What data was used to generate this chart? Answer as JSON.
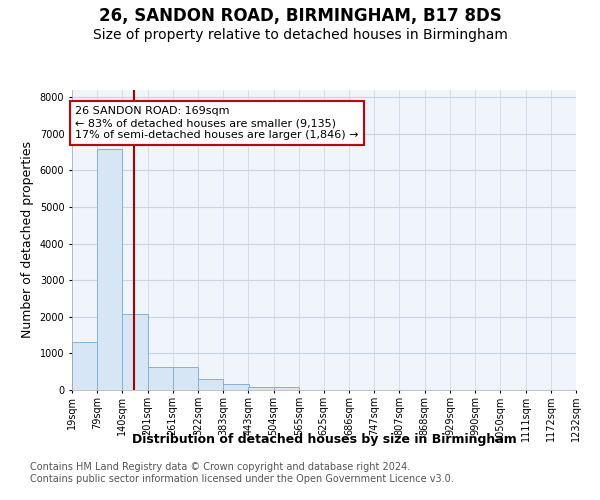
{
  "title1": "26, SANDON ROAD, BIRMINGHAM, B17 8DS",
  "title2": "Size of property relative to detached houses in Birmingham",
  "xlabel": "Distribution of detached houses by size in Birmingham",
  "ylabel": "Number of detached properties",
  "bar_values": [
    1300,
    6600,
    2080,
    640,
    630,
    300,
    160,
    90,
    80,
    0,
    0,
    0,
    0,
    0,
    0,
    0,
    0,
    0,
    0,
    0
  ],
  "bin_left_edges": [
    19,
    79,
    140,
    201,
    261,
    322,
    383,
    443,
    504,
    565,
    625,
    686,
    747,
    807,
    868,
    929,
    990,
    1050,
    1111,
    1172
  ],
  "bin_width": 61,
  "tick_labels": [
    "19sqm",
    "79sqm",
    "140sqm",
    "201sqm",
    "261sqm",
    "322sqm",
    "383sqm",
    "443sqm",
    "504sqm",
    "565sqm",
    "625sqm",
    "686sqm",
    "747sqm",
    "807sqm",
    "868sqm",
    "929sqm",
    "990sqm",
    "1050sqm",
    "1111sqm",
    "1172sqm",
    "1232sqm"
  ],
  "tick_positions": [
    19,
    79,
    140,
    201,
    261,
    322,
    383,
    443,
    504,
    565,
    625,
    686,
    747,
    807,
    868,
    929,
    990,
    1050,
    1111,
    1172,
    1232
  ],
  "bar_color": "#d6e6f5",
  "bar_edge_color": "#7fb3d9",
  "grid_color": "#c8d4e8",
  "bg_color": "#f0f4fb",
  "vline_x": 169,
  "vline_color": "#aa0000",
  "annotation_text": "26 SANDON ROAD: 169sqm\n← 83% of detached houses are smaller (9,135)\n17% of semi-detached houses are larger (1,846) →",
  "annotation_box_color": "#cc0000",
  "ylim": [
    0,
    8200
  ],
  "yticks": [
    0,
    1000,
    2000,
    3000,
    4000,
    5000,
    6000,
    7000,
    8000
  ],
  "footer1": "Contains HM Land Registry data © Crown copyright and database right 2024.",
  "footer2": "Contains public sector information licensed under the Open Government Licence v3.0.",
  "title1_fontsize": 12,
  "title2_fontsize": 10,
  "axis_label_fontsize": 9,
  "tick_fontsize": 7,
  "annotation_fontsize": 8,
  "footer_fontsize": 7
}
